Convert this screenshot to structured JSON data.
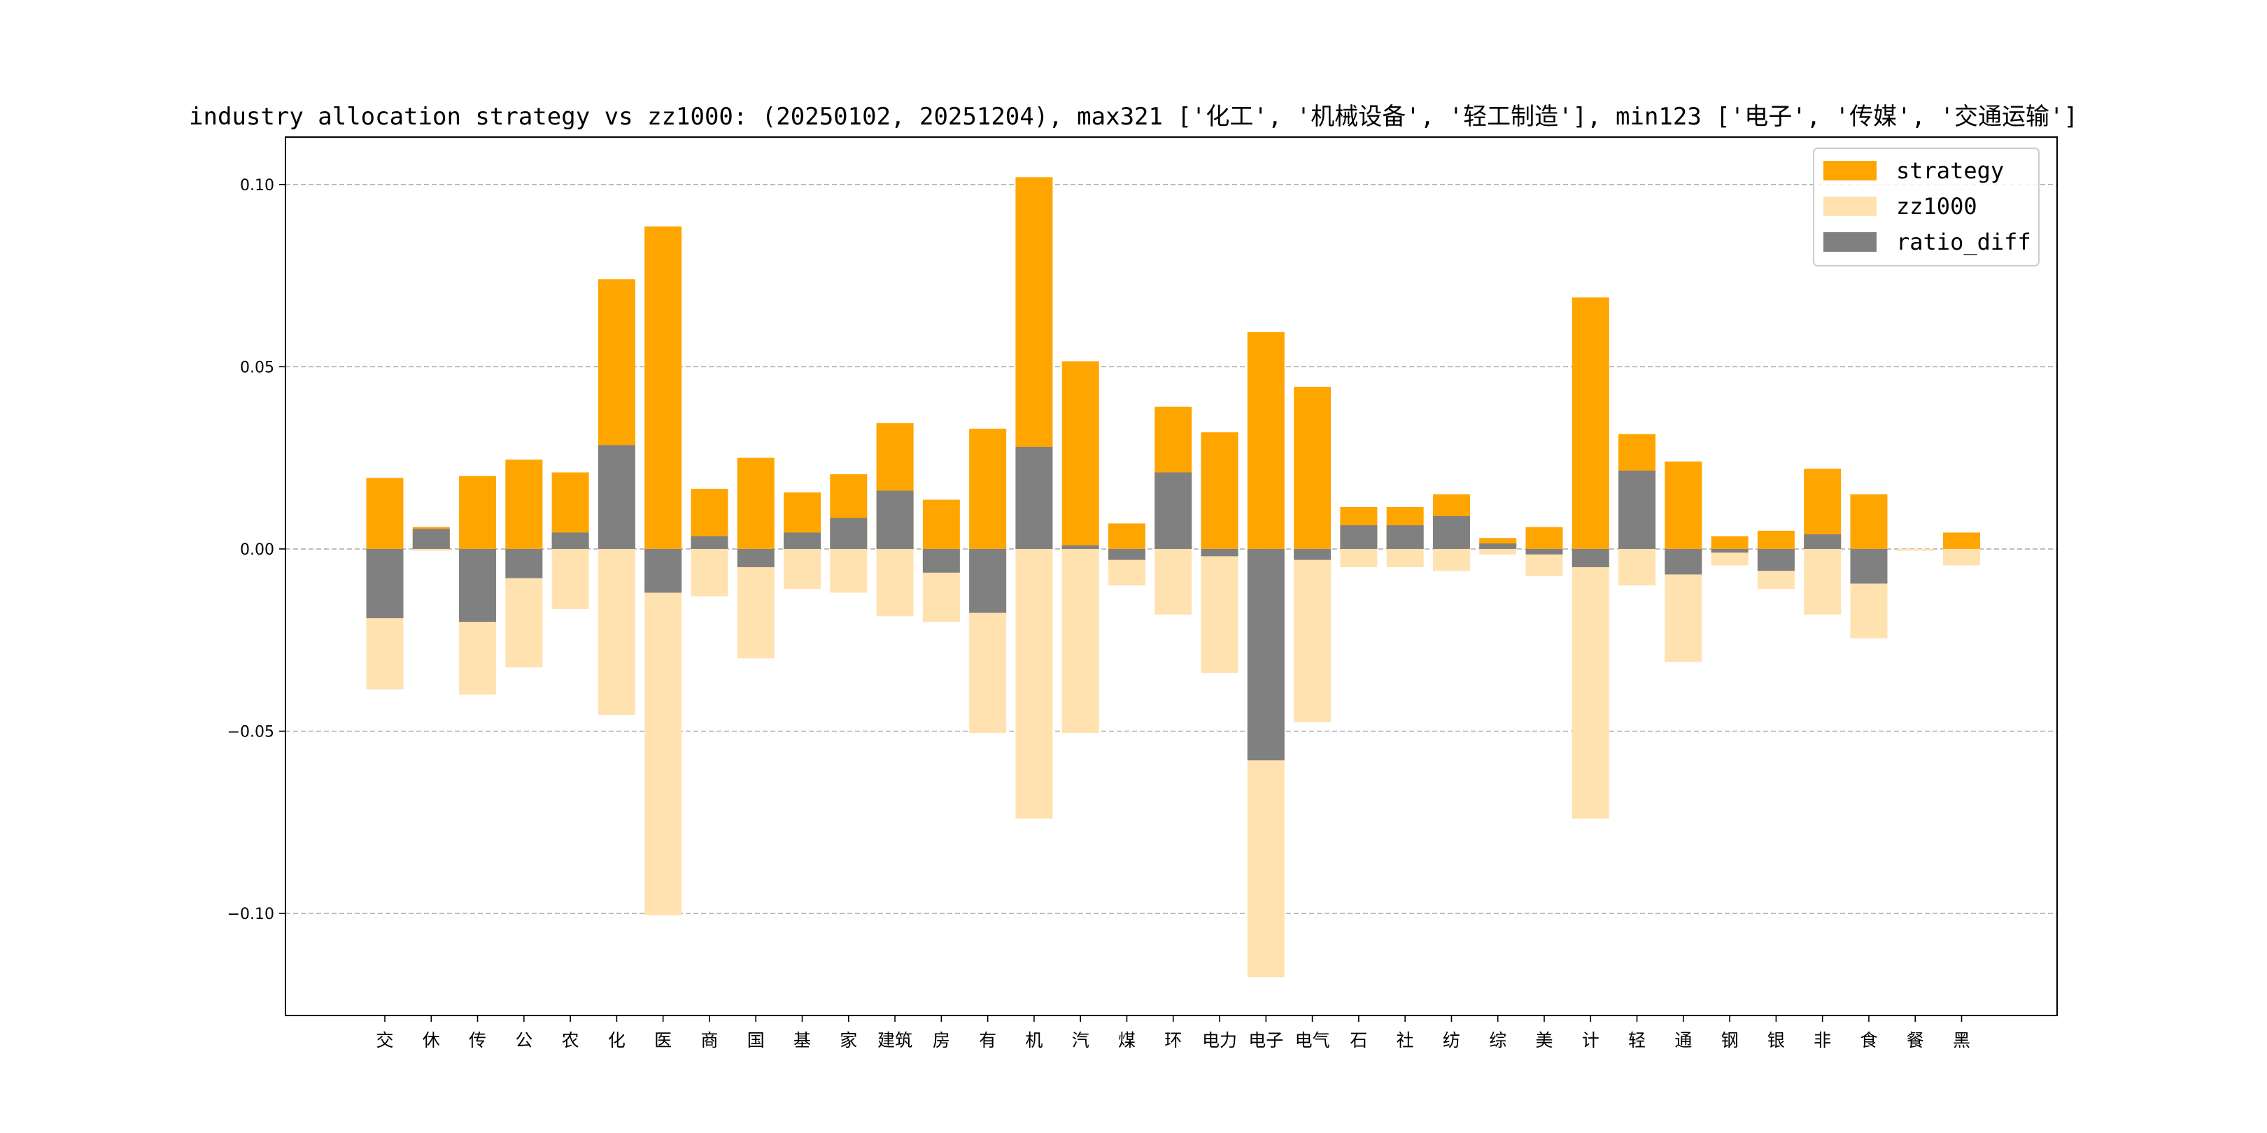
{
  "chart_data": {
    "type": "bar",
    "title": "industry allocation strategy vs zz1000: (20250102, 20251204), max321 ['化工', '机械设备', '轻工制造'], min123 ['电子', '传媒', '交通运输']",
    "xlabel": "",
    "ylabel": "",
    "ylim": [
      -0.128,
      0.113
    ],
    "yticks": [
      0.1,
      0.05,
      0.0,
      -0.05,
      -0.1
    ],
    "ytick_labels": [
      "0.10",
      "0.05",
      "0.00",
      "−0.05",
      "−0.10"
    ],
    "grid": "y-dashed",
    "legend_position": "top-right",
    "categories": [
      "交",
      "休",
      "传",
      "公",
      "农",
      "化",
      "医",
      "商",
      "国",
      "基",
      "家",
      "建筑",
      "房",
      "有",
      "机",
      "汽",
      "煤",
      "环",
      "电力",
      "电子",
      "电气",
      "石",
      "社",
      "纺",
      "综",
      "美",
      "计",
      "轻",
      "通",
      "钢",
      "银",
      "非",
      "食",
      "餐",
      "黑"
    ],
    "series": [
      {
        "name": "strategy",
        "color": "#FFA500",
        "values": [
          0.0195,
          0.006,
          0.02,
          0.0245,
          0.021,
          0.074,
          0.0885,
          0.0165,
          0.025,
          0.0155,
          0.0205,
          0.0345,
          0.0135,
          0.033,
          0.102,
          0.0515,
          0.007,
          0.039,
          0.032,
          0.0595,
          0.0445,
          0.0115,
          0.0115,
          0.015,
          0.003,
          0.006,
          0.069,
          0.0315,
          0.024,
          0.0035,
          0.005,
          0.022,
          0.015,
          -0.0005,
          0.0045
        ]
      },
      {
        "name": "zz1000",
        "color": "#FFE2B0",
        "values": [
          -0.0385,
          -0.0005,
          -0.04,
          -0.0325,
          -0.0165,
          -0.0455,
          -0.1005,
          -0.013,
          -0.03,
          -0.011,
          -0.012,
          -0.0185,
          -0.02,
          -0.0505,
          -0.074,
          -0.0505,
          -0.01,
          -0.018,
          -0.034,
          -0.1175,
          -0.0475,
          -0.005,
          -0.005,
          -0.006,
          -0.0015,
          -0.0075,
          -0.074,
          -0.01,
          -0.031,
          -0.0045,
          -0.011,
          -0.018,
          -0.0245,
          -0.0005,
          -0.0045
        ]
      },
      {
        "name": "ratio_diff",
        "color": "#808080",
        "values": [
          -0.019,
          0.0055,
          -0.02,
          -0.008,
          0.0045,
          0.0285,
          -0.012,
          0.0035,
          -0.005,
          0.0045,
          0.0085,
          0.016,
          -0.0065,
          -0.0175,
          0.028,
          0.001,
          -0.003,
          0.021,
          -0.002,
          -0.058,
          -0.003,
          0.0065,
          0.0065,
          0.009,
          0.0015,
          -0.0015,
          -0.005,
          0.0215,
          -0.007,
          -0.001,
          -0.006,
          0.004,
          -0.0095,
          0.0,
          0.0
        ]
      }
    ]
  }
}
